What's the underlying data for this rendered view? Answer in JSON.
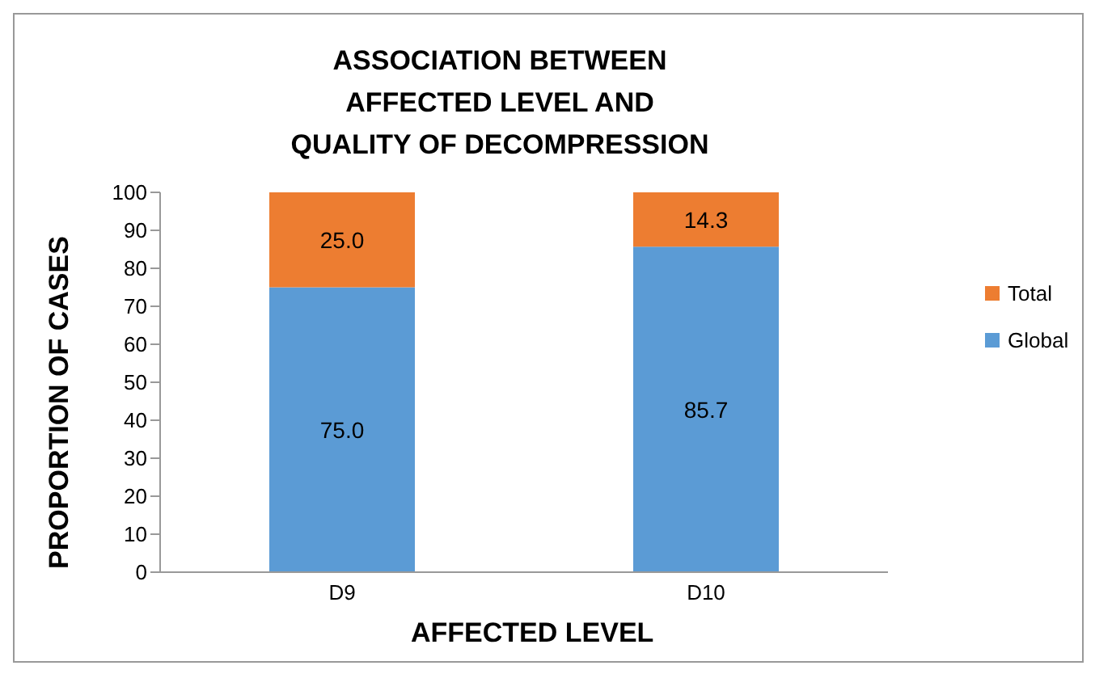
{
  "chart_data": {
    "type": "bar",
    "title": "ASSOCIATION BETWEEN AFFECTED LEVEL AND QUALITY OF DECOMPRESSION",
    "xlabel": "AFFECTED LEVEL",
    "ylabel": "PROPORTION OF CASES",
    "categories": [
      "D9",
      "D10"
    ],
    "stacked": true,
    "series": [
      {
        "name": "Global",
        "color": "#5b9bd5",
        "values": [
          75.0,
          85.7
        ],
        "value_labels": [
          "75.0",
          "85.7"
        ]
      },
      {
        "name": "Total",
        "color": "#ed7d31",
        "values": [
          25.0,
          14.3
        ],
        "value_labels": [
          "25.0",
          "14.3"
        ]
      }
    ],
    "ylim": [
      0,
      100
    ],
    "yticks": [
      0,
      10,
      20,
      30,
      40,
      50,
      60,
      70,
      80,
      90,
      100
    ],
    "grid": false,
    "legend": "right"
  }
}
